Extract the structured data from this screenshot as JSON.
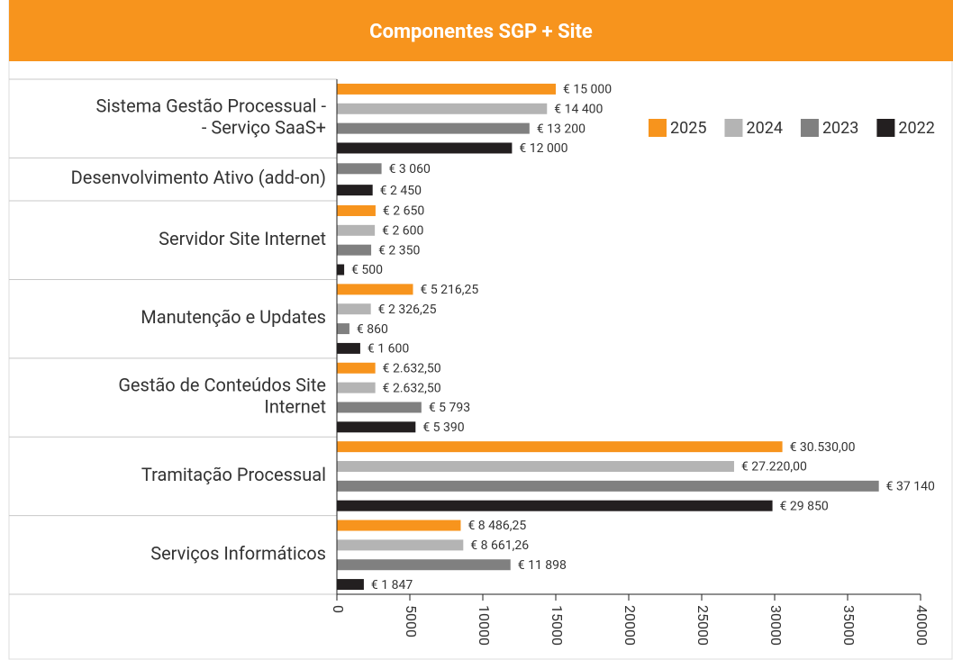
{
  "chart_data": {
    "type": "barh",
    "title": "Componentes SGP + Site",
    "categories": [
      "Sistema Gestão Processual -\n- Serviço SaaS+",
      "Desenvolvimento Ativo (add-on)",
      "Servidor Site Internet",
      "Manutenção e Updates",
      "Gestão de Conteúdos Site\nInternet",
      "Tramitação Processual",
      "Serviços Informáticos"
    ],
    "series": [
      {
        "name": "2025",
        "color": "#f7941d",
        "values": [
          15000,
          null,
          2650,
          5216.25,
          2632.5,
          30530,
          8486.25
        ],
        "value_labels": [
          "€ 15 000",
          null,
          "€ 2 650",
          "€ 5 216,25",
          "€ 2.632,50",
          "€ 30.530,00",
          "€ 8 486,25"
        ]
      },
      {
        "name": "2024",
        "color": "#b4b4b4",
        "values": [
          14400,
          null,
          2600,
          2326.25,
          2632.5,
          27220,
          8661.26
        ],
        "value_labels": [
          "€ 14 400",
          null,
          "€ 2 600",
          "€ 2 326,25",
          "€ 2.632,50",
          "€ 27.220,00",
          "€ 8 661,26"
        ]
      },
      {
        "name": "2023",
        "color": "#808080",
        "values": [
          13200,
          3060,
          2350,
          860,
          5793,
          37140,
          11898
        ],
        "value_labels": [
          "€ 13 200",
          "€ 3 060",
          "€ 2 350",
          "€ 860",
          "€ 5 793",
          "€ 37 140",
          "€ 11 898"
        ]
      },
      {
        "name": "2022",
        "color": "#231f20",
        "values": [
          12000,
          2450,
          500,
          1600,
          5390,
          29850,
          1847
        ],
        "value_labels": [
          "€ 12 000",
          "€ 2 450",
          "€ 500",
          "€ 1 600",
          "€ 5 390",
          "€ 29 850",
          "€ 1 847"
        ]
      }
    ],
    "xlim": [
      0,
      40000
    ],
    "xticks": [
      0,
      5000,
      10000,
      15000,
      20000,
      25000,
      30000,
      35000,
      40000
    ],
    "legend": "upper right"
  }
}
